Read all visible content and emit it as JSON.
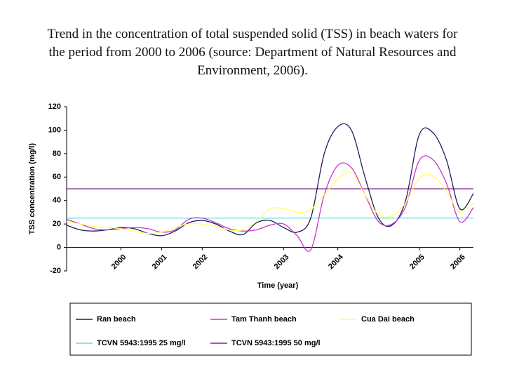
{
  "chart_data": {
    "type": "line",
    "title": "Trend in the concentration of total suspended solid (TSS) in beach waters for the period from 2000 to 2006 (source: Department of Natural Resources and Environment, 2006).",
    "x_label": "Time (year)",
    "y_label": "TSS concentration (mg/l)",
    "categories": [
      null,
      null,
      null,
      null,
      "2000",
      null,
      null,
      "2001",
      null,
      null,
      "2002",
      null,
      null,
      null,
      null,
      null,
      "2003",
      null,
      null,
      null,
      "2004",
      null,
      null,
      null,
      null,
      null,
      "2005",
      null,
      null,
      "2006",
      null
    ],
    "series": [
      {
        "name": "Ran beach",
        "color": "#1f1f5e",
        "values": [
          19,
          15,
          14,
          15,
          17,
          16,
          12,
          10,
          14,
          21,
          23,
          20,
          14,
          11,
          21,
          23,
          17,
          13,
          25,
          80,
          103,
          100,
          60,
          25,
          19,
          40,
          96,
          98,
          75,
          33,
          46
        ]
      },
      {
        "name": "Tam Thanh beach",
        "color": "#cc33cc",
        "values": [
          24,
          20,
          16,
          15,
          16,
          17,
          16,
          13,
          15,
          24,
          25,
          21,
          16,
          14,
          15,
          19,
          20,
          10,
          -2,
          45,
          70,
          68,
          45,
          22,
          20,
          35,
          74,
          75,
          55,
          22,
          34
        ]
      },
      {
        "name": "Cua Dai beach",
        "color": "#ffff66",
        "values": [
          22,
          20,
          18,
          17,
          16,
          14,
          12,
          13,
          17,
          20,
          20,
          18,
          15,
          15,
          22,
          33,
          33,
          30,
          32,
          45,
          58,
          64,
          45,
          28,
          27,
          38,
          59,
          61,
          48,
          30,
          38
        ]
      }
    ],
    "reference_lines": [
      {
        "name": "TCVN 5943:1995 25 mg/l",
        "color": "#66dddd",
        "value": 25
      },
      {
        "name": "TCVN 5943:1995 50 mg/l",
        "color": "#7a2a8a",
        "value": 50
      }
    ],
    "ylim": [
      -20,
      120
    ],
    "yticks": [
      -20,
      0,
      20,
      40,
      60,
      80,
      100,
      120
    ]
  }
}
